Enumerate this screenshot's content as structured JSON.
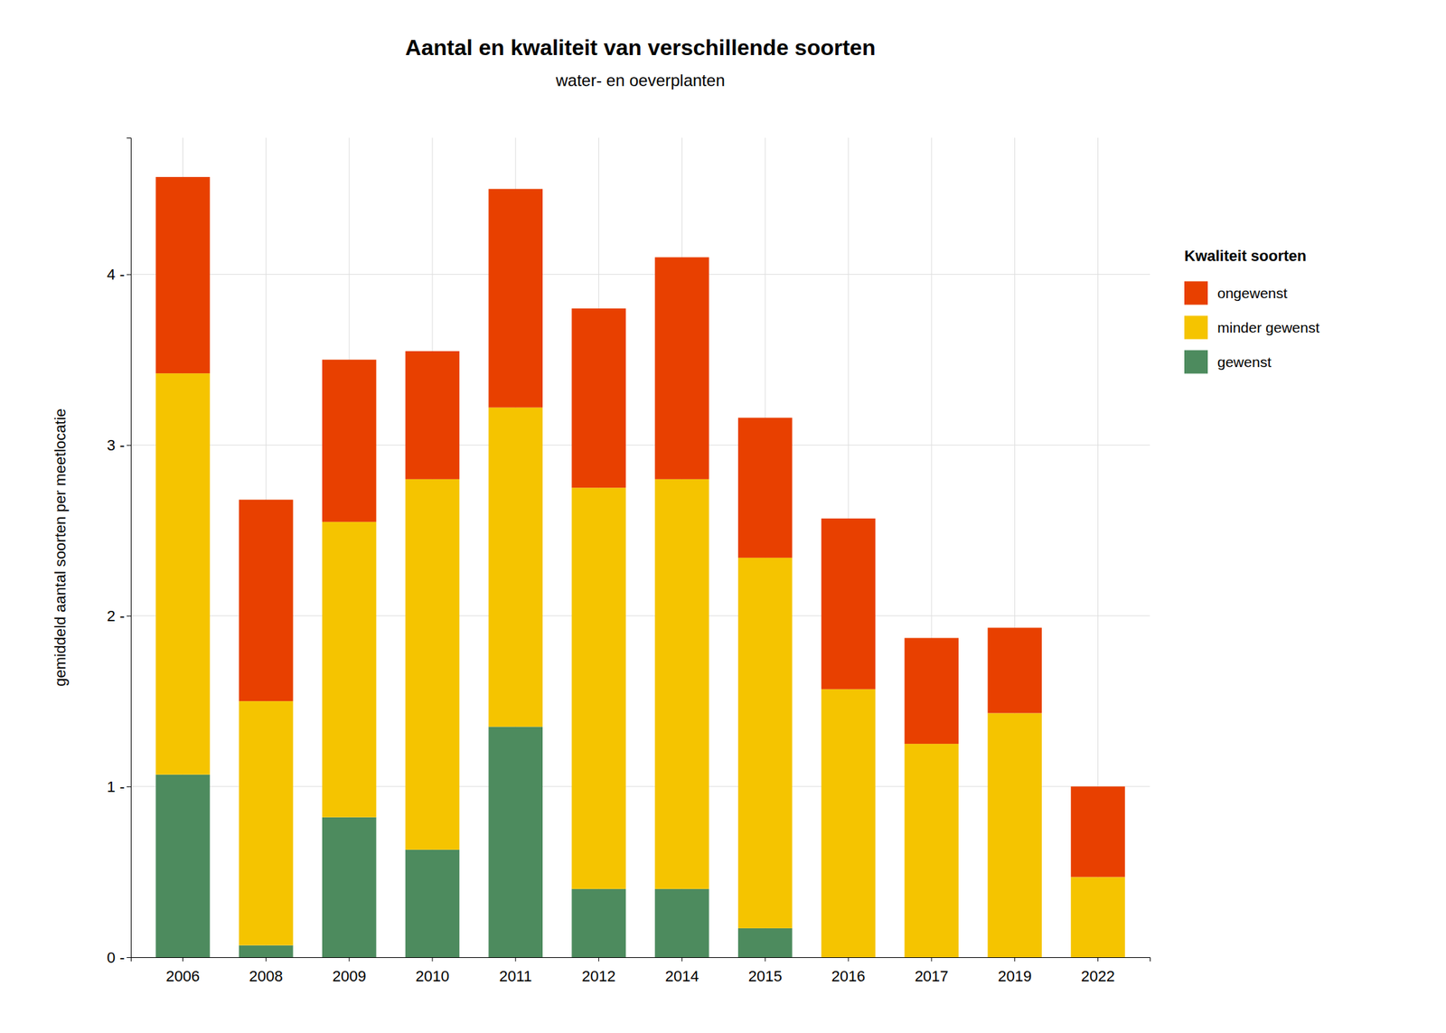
{
  "chart_data": {
    "type": "bar",
    "stacked": true,
    "title": "Aantal en kwaliteit van verschillende soorten",
    "subtitle": "water- en oeverplanten",
    "ylabel": "gemiddeld aantal soorten per meetlocatie",
    "legend_title": "Kwaliteit soorten",
    "categories": [
      "2006",
      "2008",
      "2009",
      "2010",
      "2011",
      "2012",
      "2014",
      "2015",
      "2016",
      "2017",
      "2019",
      "2022"
    ],
    "series": [
      {
        "name": "gewenst",
        "color": "#4d8b5e",
        "values": [
          1.07,
          0.07,
          0.82,
          0.63,
          1.35,
          0.4,
          0.4,
          0.17,
          0.0,
          0.0,
          0.0,
          0.0
        ]
      },
      {
        "name": "minder gewenst",
        "color": "#f5c400",
        "values": [
          2.35,
          1.43,
          1.73,
          2.17,
          1.87,
          2.35,
          2.4,
          2.17,
          1.57,
          1.25,
          1.43,
          0.47
        ]
      },
      {
        "name": "ongewenst",
        "color": "#e84000",
        "values": [
          1.15,
          1.18,
          0.95,
          0.75,
          1.28,
          1.05,
          1.3,
          0.82,
          1.0,
          0.62,
          0.5,
          0.53
        ]
      }
    ],
    "ylim": [
      0,
      4.8
    ],
    "yticks": [
      {
        "value": 0,
        "label": "0 -"
      },
      {
        "value": 1,
        "label": "1 -"
      },
      {
        "value": 2,
        "label": "2 -"
      },
      {
        "value": 3,
        "label": "3 -"
      },
      {
        "value": 4,
        "label": "4 -"
      }
    ],
    "grid": true,
    "legend": "right"
  }
}
